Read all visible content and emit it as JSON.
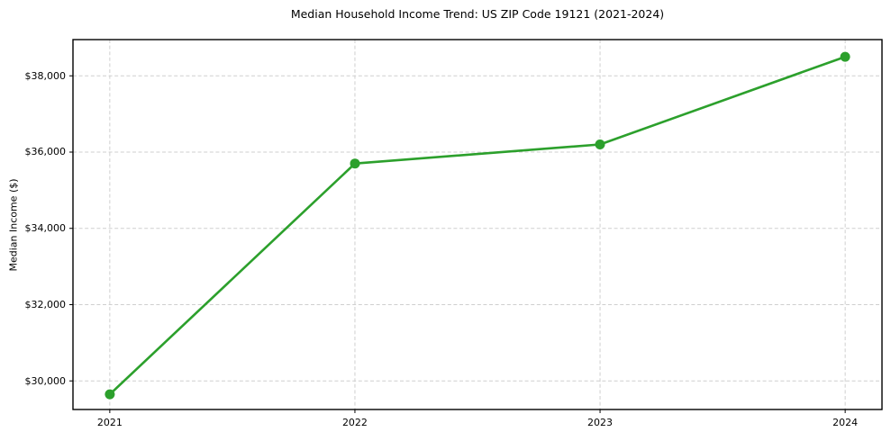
{
  "chart_data": {
    "type": "line",
    "title": "Median Household Income Trend: US ZIP Code 19121 (2021-2024)",
    "xlabel": "",
    "ylabel": "Median Income ($)",
    "x": [
      2021,
      2022,
      2023,
      2024
    ],
    "x_tick_labels": [
      "2021",
      "2022",
      "2023",
      "2024"
    ],
    "series": [
      {
        "name": "Median Household Income",
        "values": [
          29650,
          35700,
          36200,
          38500
        ]
      }
    ],
    "y_ticks": [
      30000,
      32000,
      34000,
      36000,
      38000
    ],
    "y_tick_labels": [
      "$30,000",
      "$32,000",
      "$34,000",
      "$36,000",
      "$38,000"
    ],
    "ylim": [
      29250,
      38950
    ],
    "grid": true,
    "grid_style": "dashed",
    "legend_position": "none",
    "colors": {
      "line": "#2ca02c",
      "marker": "#2ca02c",
      "grid": "#cfcfcf",
      "spine": "#000000",
      "text": "#000000",
      "background": "#ffffff"
    }
  }
}
